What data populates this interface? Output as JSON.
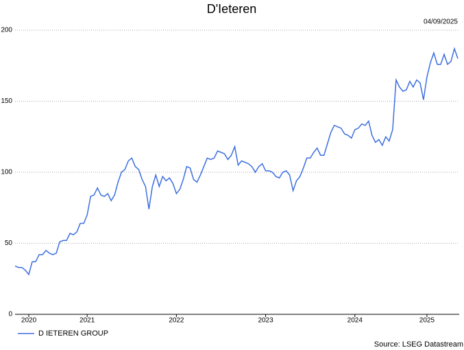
{
  "chart_data": {
    "type": "line",
    "title": "D'Ieteren",
    "date": "04/09/2025",
    "source": "Source: LSEG Datastream",
    "categories": [
      null,
      null,
      null,
      null,
      "2020",
      null,
      null,
      null,
      null,
      null,
      null,
      null,
      null,
      null,
      null,
      null,
      null,
      null,
      null,
      null,
      null,
      "2021",
      null,
      null,
      null,
      null,
      null,
      null,
      null,
      null,
      null,
      null,
      null,
      null,
      null,
      null,
      null,
      null,
      null,
      null,
      null,
      null,
      null,
      null,
      null,
      null,
      null,
      "2022",
      null,
      null,
      null,
      null,
      null,
      null,
      null,
      null,
      null,
      null,
      null,
      null,
      null,
      null,
      null,
      null,
      null,
      null,
      null,
      null,
      null,
      null,
      null,
      null,
      null,
      "2023",
      null,
      null,
      null,
      null,
      null,
      null,
      null,
      null,
      null,
      null,
      null,
      null,
      null,
      null,
      null,
      null,
      null,
      null,
      null,
      null,
      null,
      null,
      null,
      null,
      null,
      "2024",
      null,
      null,
      null,
      null,
      null,
      null,
      null,
      null,
      null,
      null,
      null,
      null,
      null,
      null,
      null,
      null,
      null,
      null,
      null,
      null,
      "2025",
      null,
      null,
      null,
      null,
      null,
      null,
      null,
      null,
      null
    ],
    "series": [
      {
        "name": "D IETEREN GROUP",
        "color": "#3b6ee0",
        "values": [
          34,
          33,
          33,
          31,
          28,
          37,
          37,
          42,
          42,
          45,
          43,
          42,
          43,
          51,
          52,
          52,
          57,
          56,
          58,
          64,
          64,
          70,
          83,
          84,
          89,
          84,
          83,
          85,
          80,
          84,
          93,
          100,
          102,
          108,
          110,
          104,
          102,
          95,
          90,
          74,
          90,
          98,
          90,
          97,
          94,
          96,
          92,
          85,
          88,
          95,
          104,
          103,
          95,
          93,
          98,
          104,
          110,
          109,
          110,
          115,
          114,
          113,
          109,
          112,
          118,
          105,
          108,
          107,
          106,
          104,
          100,
          104,
          106,
          101,
          101,
          100,
          97,
          96,
          100,
          101,
          98,
          87,
          94,
          97,
          103,
          110,
          110,
          114,
          117,
          112,
          112,
          120,
          128,
          133,
          132,
          131,
          127,
          126,
          124,
          130,
          131,
          134,
          133,
          136,
          126,
          121,
          123,
          119,
          125,
          122,
          130,
          165,
          160,
          157,
          158,
          164,
          160,
          165,
          163,
          151,
          167,
          177,
          184,
          176,
          176,
          183,
          176,
          178,
          187,
          180
        ]
      }
    ],
    "ylim": [
      0,
      200
    ],
    "yticks": [
      0,
      50,
      100,
      150,
      200
    ],
    "grid": true
  }
}
